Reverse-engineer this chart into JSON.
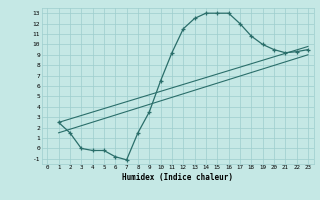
{
  "title": "",
  "xlabel": "Humidex (Indice chaleur)",
  "xlim": [
    -0.5,
    23.5
  ],
  "ylim": [
    -1.5,
    13.5
  ],
  "xticks": [
    0,
    1,
    2,
    3,
    4,
    5,
    6,
    7,
    8,
    9,
    10,
    11,
    12,
    13,
    14,
    15,
    16,
    17,
    18,
    19,
    20,
    21,
    22,
    23
  ],
  "yticks": [
    -1,
    0,
    1,
    2,
    3,
    4,
    5,
    6,
    7,
    8,
    9,
    10,
    11,
    12,
    13
  ],
  "bg_color": "#c5e8e5",
  "line_color": "#2a6e6a",
  "grid_color": "#9ecece",
  "curve1_x": [
    1,
    2,
    3,
    4,
    5,
    6,
    7,
    8,
    9,
    10,
    11,
    12,
    13,
    14,
    15,
    16,
    17,
    18,
    19,
    20,
    21,
    22,
    23
  ],
  "curve1_y": [
    2.5,
    1.5,
    0.0,
    -0.2,
    -0.2,
    -0.8,
    -1.1,
    1.5,
    3.5,
    6.5,
    9.2,
    11.5,
    12.5,
    13.0,
    13.0,
    13.0,
    12.0,
    10.8,
    10.0,
    9.5,
    9.2,
    9.3,
    9.5
  ],
  "line2_x": [
    1,
    23
  ],
  "line2_y": [
    1.5,
    9.0
  ],
  "line3_x": [
    1,
    23
  ],
  "line3_y": [
    2.5,
    9.8
  ]
}
